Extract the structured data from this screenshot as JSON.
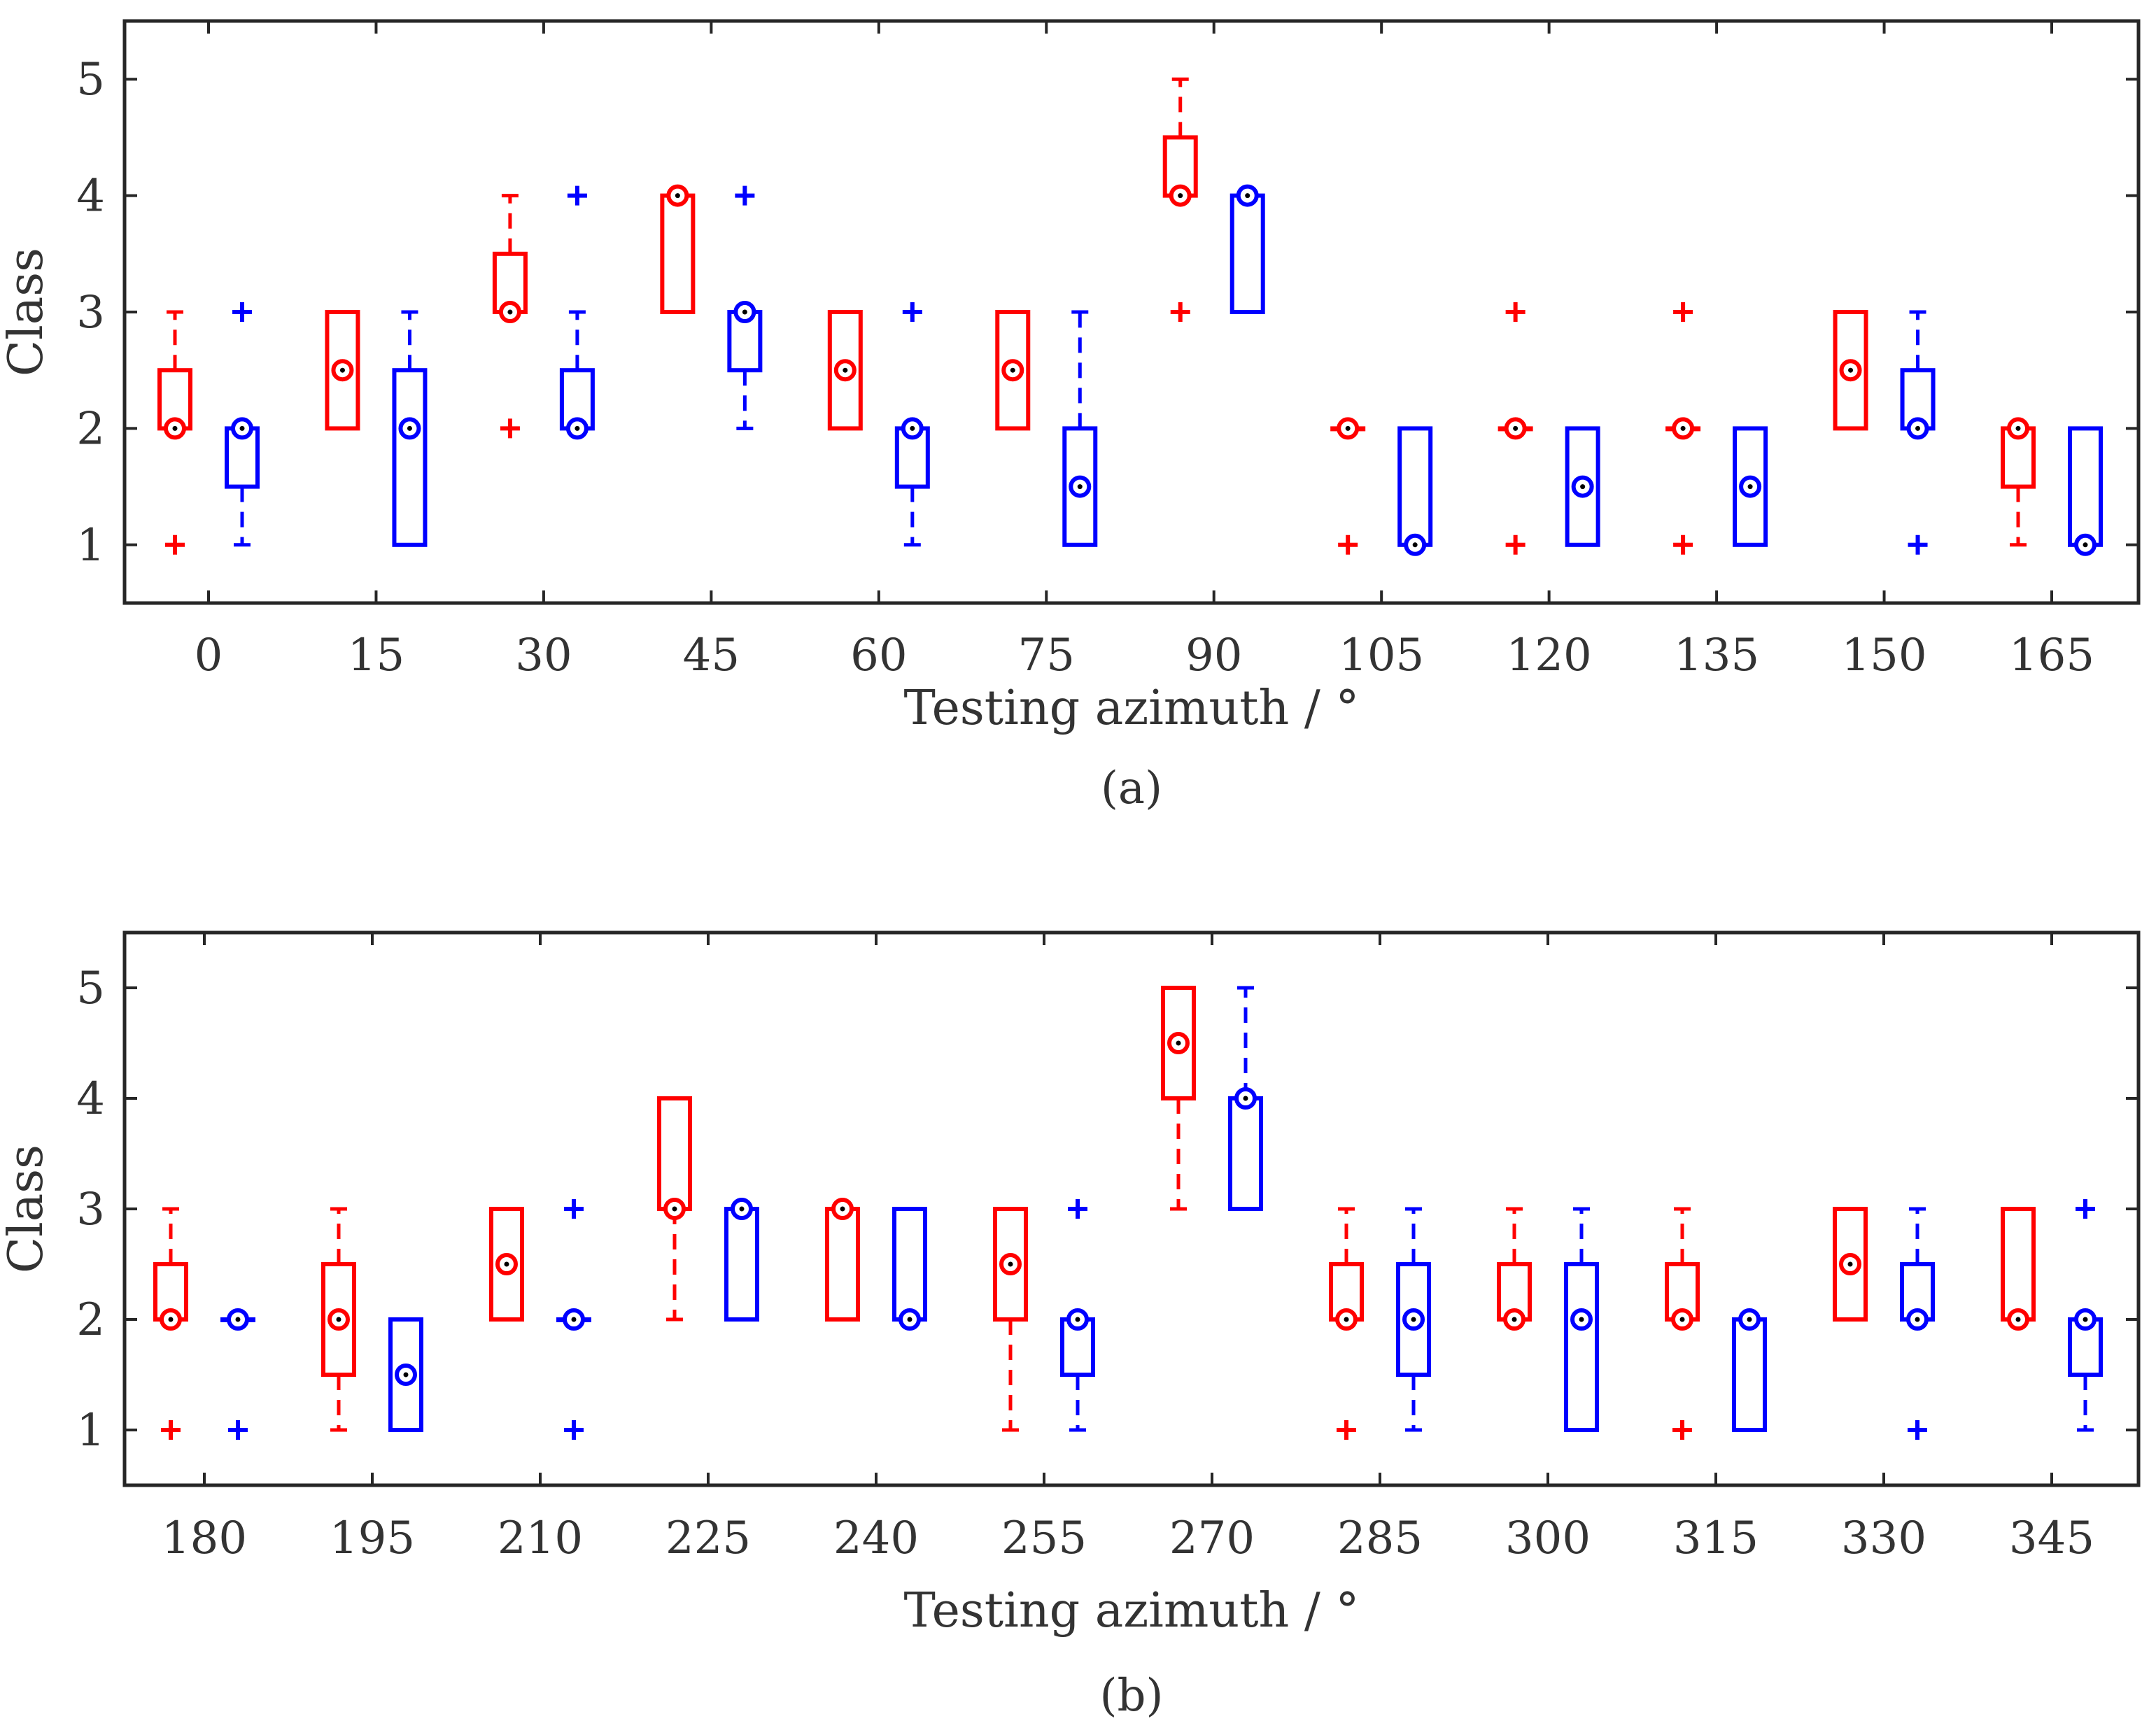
{
  "chart_data": [
    {
      "type": "box",
      "panel_label": "(a)",
      "xlabel": "Testing azimuth / °",
      "ylabel": "Class",
      "ylim": [
        0.5,
        5.5
      ],
      "yticks": [
        1,
        2,
        3,
        4,
        5
      ],
      "categories": [
        "0",
        "15",
        "30",
        "45",
        "60",
        "75",
        "90",
        "105",
        "120",
        "135",
        "150",
        "165"
      ],
      "colors": {
        "series_a": "#ff0000",
        "series_b": "#0000ff"
      },
      "series": [
        {
          "name": "red",
          "boxes": [
            {
              "q1": 2,
              "q3": 2.5,
              "median": 2,
              "wlo": 2,
              "whi": 3,
              "outliers": [
                1
              ]
            },
            {
              "q1": 2,
              "q3": 3,
              "median": 2.5,
              "wlo": 2,
              "whi": 3,
              "outliers": []
            },
            {
              "q1": 3,
              "q3": 3.5,
              "median": 3,
              "wlo": 3,
              "whi": 4,
              "outliers": [
                2
              ]
            },
            {
              "q1": 3,
              "q3": 4,
              "median": 4,
              "wlo": 3,
              "whi": 4,
              "outliers": []
            },
            {
              "q1": 2,
              "q3": 3,
              "median": 2.5,
              "wlo": 2,
              "whi": 3,
              "outliers": []
            },
            {
              "q1": 2,
              "q3": 3,
              "median": 2.5,
              "wlo": 2,
              "whi": 3,
              "outliers": []
            },
            {
              "q1": 4,
              "q3": 4.5,
              "median": 4,
              "wlo": 4,
              "whi": 5,
              "outliers": [
                3
              ]
            },
            {
              "q1": 2,
              "q3": 2,
              "median": 2,
              "wlo": 2,
              "whi": 2,
              "outliers": [
                1
              ]
            },
            {
              "q1": 2,
              "q3": 2,
              "median": 2,
              "wlo": 2,
              "whi": 2,
              "outliers": [
                1,
                3
              ]
            },
            {
              "q1": 2,
              "q3": 2,
              "median": 2,
              "wlo": 2,
              "whi": 2,
              "outliers": [
                1,
                3
              ]
            },
            {
              "q1": 2,
              "q3": 3,
              "median": 2.5,
              "wlo": 2,
              "whi": 3,
              "outliers": []
            },
            {
              "q1": 1.5,
              "q3": 2,
              "median": 2,
              "wlo": 1,
              "whi": 2,
              "outliers": []
            }
          ]
        },
        {
          "name": "blue",
          "boxes": [
            {
              "q1": 1.5,
              "q3": 2,
              "median": 2,
              "wlo": 1,
              "whi": 2,
              "outliers": [
                3
              ]
            },
            {
              "q1": 1,
              "q3": 2.5,
              "median": 2,
              "wlo": 1,
              "whi": 3,
              "outliers": []
            },
            {
              "q1": 2,
              "q3": 2.5,
              "median": 2,
              "wlo": 2,
              "whi": 3,
              "outliers": [
                4
              ]
            },
            {
              "q1": 2.5,
              "q3": 3,
              "median": 3,
              "wlo": 2,
              "whi": 3,
              "outliers": [
                4
              ]
            },
            {
              "q1": 1.5,
              "q3": 2,
              "median": 2,
              "wlo": 1,
              "whi": 2,
              "outliers": [
                3
              ]
            },
            {
              "q1": 1,
              "q3": 2,
              "median": 1.5,
              "wlo": 1,
              "whi": 3,
              "outliers": []
            },
            {
              "q1": 3,
              "q3": 4,
              "median": 4,
              "wlo": 3,
              "whi": 4,
              "outliers": []
            },
            {
              "q1": 1,
              "q3": 2,
              "median": 1,
              "wlo": 1,
              "whi": 2,
              "outliers": []
            },
            {
              "q1": 1,
              "q3": 2,
              "median": 1.5,
              "wlo": 1,
              "whi": 2,
              "outliers": []
            },
            {
              "q1": 1,
              "q3": 2,
              "median": 1.5,
              "wlo": 1,
              "whi": 2,
              "outliers": []
            },
            {
              "q1": 2,
              "q3": 2.5,
              "median": 2,
              "wlo": 2,
              "whi": 3,
              "outliers": [
                1
              ]
            },
            {
              "q1": 1,
              "q3": 2,
              "median": 1,
              "wlo": 1,
              "whi": 2,
              "outliers": []
            }
          ]
        }
      ]
    },
    {
      "type": "box",
      "panel_label": "(b)",
      "xlabel": "Testing azimuth / °",
      "ylabel": "Class",
      "ylim": [
        0.5,
        5.5
      ],
      "yticks": [
        1,
        2,
        3,
        4,
        5
      ],
      "categories": [
        "180",
        "195",
        "210",
        "225",
        "240",
        "255",
        "270",
        "285",
        "300",
        "315",
        "330",
        "345"
      ],
      "colors": {
        "series_a": "#ff0000",
        "series_b": "#0000ff"
      },
      "series": [
        {
          "name": "red",
          "boxes": [
            {
              "q1": 2,
              "q3": 2.5,
              "median": 2,
              "wlo": 2,
              "whi": 3,
              "outliers": [
                1
              ]
            },
            {
              "q1": 1.5,
              "q3": 2.5,
              "median": 2,
              "wlo": 1,
              "whi": 3,
              "outliers": []
            },
            {
              "q1": 2,
              "q3": 3,
              "median": 2.5,
              "wlo": 2,
              "whi": 3,
              "outliers": []
            },
            {
              "q1": 3,
              "q3": 4,
              "median": 3,
              "wlo": 2,
              "whi": 4,
              "outliers": []
            },
            {
              "q1": 2,
              "q3": 3,
              "median": 3,
              "wlo": 2,
              "whi": 3,
              "outliers": []
            },
            {
              "q1": 2,
              "q3": 3,
              "median": 2.5,
              "wlo": 1,
              "whi": 3,
              "outliers": []
            },
            {
              "q1": 4,
              "q3": 5,
              "median": 4.5,
              "wlo": 3,
              "whi": 5,
              "outliers": []
            },
            {
              "q1": 2,
              "q3": 2.5,
              "median": 2,
              "wlo": 2,
              "whi": 3,
              "outliers": [
                1
              ]
            },
            {
              "q1": 2,
              "q3": 2.5,
              "median": 2,
              "wlo": 2,
              "whi": 3,
              "outliers": []
            },
            {
              "q1": 2,
              "q3": 2.5,
              "median": 2,
              "wlo": 2,
              "whi": 3,
              "outliers": [
                1
              ]
            },
            {
              "q1": 2,
              "q3": 3,
              "median": 2.5,
              "wlo": 2,
              "whi": 3,
              "outliers": []
            },
            {
              "q1": 2,
              "q3": 3,
              "median": 2,
              "wlo": 2,
              "whi": 3,
              "outliers": []
            }
          ]
        },
        {
          "name": "blue",
          "boxes": [
            {
              "q1": 2,
              "q3": 2,
              "median": 2,
              "wlo": 2,
              "whi": 2,
              "outliers": [
                1
              ]
            },
            {
              "q1": 1,
              "q3": 2,
              "median": 1.5,
              "wlo": 1,
              "whi": 2,
              "outliers": []
            },
            {
              "q1": 2,
              "q3": 2,
              "median": 2,
              "wlo": 2,
              "whi": 2,
              "outliers": [
                1,
                3
              ]
            },
            {
              "q1": 2,
              "q3": 3,
              "median": 3,
              "wlo": 2,
              "whi": 3,
              "outliers": []
            },
            {
              "q1": 2,
              "q3": 3,
              "median": 2,
              "wlo": 2,
              "whi": 3,
              "outliers": []
            },
            {
              "q1": 1.5,
              "q3": 2,
              "median": 2,
              "wlo": 1,
              "whi": 2,
              "outliers": [
                3
              ]
            },
            {
              "q1": 3,
              "q3": 4,
              "median": 4,
              "wlo": 3,
              "whi": 5,
              "outliers": []
            },
            {
              "q1": 1.5,
              "q3": 2.5,
              "median": 2,
              "wlo": 1,
              "whi": 3,
              "outliers": []
            },
            {
              "q1": 1,
              "q3": 2.5,
              "median": 2,
              "wlo": 1,
              "whi": 3,
              "outliers": []
            },
            {
              "q1": 1,
              "q3": 2,
              "median": 2,
              "wlo": 1,
              "whi": 2,
              "outliers": []
            },
            {
              "q1": 2,
              "q3": 2.5,
              "median": 2,
              "wlo": 2,
              "whi": 3,
              "outliers": [
                1
              ]
            },
            {
              "q1": 1.5,
              "q3": 2,
              "median": 2,
              "wlo": 1,
              "whi": 2,
              "outliers": [
                3
              ]
            }
          ]
        }
      ]
    }
  ]
}
